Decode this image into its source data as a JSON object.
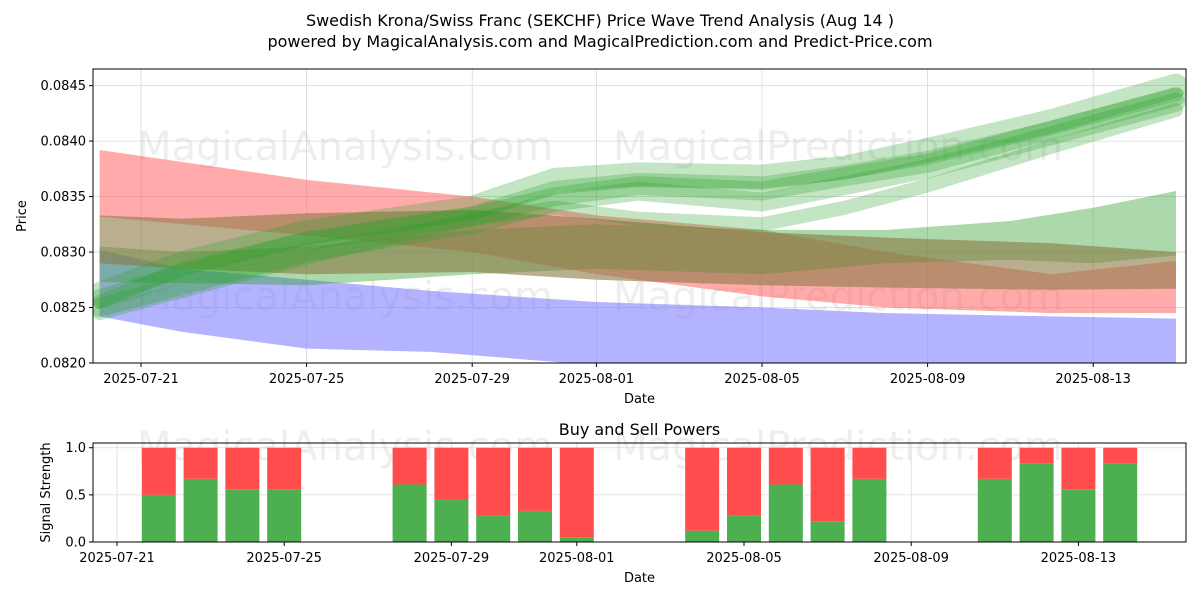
{
  "title_line1": "Swedish Krona/Swiss Franc (SEKCHF) Price Wave Trend Analysis (Aug 14 )",
  "title_line2": "powered by MagicalAnalysis.com and MagicalPrediction.com and Predict-Price.com",
  "watermarks": [
    "MagicalAnalysis.com",
    "MagicalPrediction.com"
  ],
  "colors": {
    "green": "#2ca02c",
    "red": "#ff6666",
    "blue": "#8080ff",
    "olive": "#8a7a44",
    "teal": "#3a7a8a",
    "bar_green": "#4caf50",
    "bar_red": "#ff4d4d"
  },
  "chart_data": [
    {
      "type": "area",
      "title": "",
      "xlabel": "Date",
      "ylabel": "Price",
      "x_ticks": [
        "2025-07-21",
        "2025-07-25",
        "2025-07-29",
        "2025-08-01",
        "2025-08-05",
        "2025-08-09",
        "2025-08-13"
      ],
      "y_ticks": [
        "0.0820",
        "0.0825",
        "0.0830",
        "0.0835",
        "0.0840",
        "0.0845"
      ],
      "xlim": [
        "2025-07-20",
        "2025-08-15"
      ],
      "ylim": [
        0.082,
        0.08465
      ],
      "grid": true,
      "bands": [
        {
          "name": "red",
          "color": "red",
          "x": [
            "2025-07-20",
            "2025-07-25",
            "2025-07-29",
            "2025-08-01",
            "2025-08-05",
            "2025-08-08",
            "2025-08-12",
            "2025-08-15"
          ],
          "upper": [
            0.08392,
            0.08365,
            0.0835,
            0.08333,
            0.0832,
            0.083,
            0.0828,
            0.08292
          ],
          "lower": [
            0.08332,
            0.08315,
            0.083,
            0.0828,
            0.0826,
            0.0825,
            0.08245,
            0.08245
          ]
        },
        {
          "name": "blue",
          "color": "blue",
          "x": [
            "2025-07-20",
            "2025-07-22",
            "2025-07-25",
            "2025-07-28",
            "2025-08-01",
            "2025-08-05",
            "2025-08-08",
            "2025-08-12",
            "2025-08-15"
          ],
          "upper": [
            0.08302,
            0.08285,
            0.08275,
            0.08265,
            0.08255,
            0.0825,
            0.08245,
            0.08242,
            0.0824
          ],
          "lower": [
            0.08242,
            0.08228,
            0.08213,
            0.0821,
            0.08198,
            0.08185,
            0.0818,
            0.08178,
            0.08178
          ]
        },
        {
          "name": "green-low",
          "color": "green",
          "x": [
            "2025-07-20",
            "2025-07-22",
            "2025-07-25",
            "2025-07-29",
            "2025-08-01",
            "2025-08-05",
            "2025-08-08",
            "2025-08-11",
            "2025-08-13",
            "2025-08-15"
          ],
          "upper": [
            0.08305,
            0.083,
            0.08305,
            0.0832,
            0.08325,
            0.0832,
            0.0832,
            0.08328,
            0.0834,
            0.08355
          ],
          "lower": [
            0.08273,
            0.08272,
            0.0827,
            0.0828,
            0.08285,
            0.0828,
            0.0829,
            0.08293,
            0.0829,
            0.08297
          ]
        },
        {
          "name": "olive",
          "color": "olive",
          "x": [
            "2025-07-20",
            "2025-07-22",
            "2025-07-25",
            "2025-07-29",
            "2025-08-01",
            "2025-08-05",
            "2025-08-08",
            "2025-08-12",
            "2025-08-15"
          ],
          "upper": [
            0.08333,
            0.0833,
            0.08335,
            0.08338,
            0.0833,
            0.08318,
            0.08313,
            0.08308,
            0.083
          ],
          "lower": [
            0.0829,
            0.08285,
            0.0828,
            0.08282,
            0.08275,
            0.0827,
            0.08268,
            0.08266,
            0.08267
          ]
        }
      ],
      "wave_lines": [
        {
          "color": "green",
          "x": [
            "2025-07-20",
            "2025-07-22",
            "2025-07-25",
            "2025-07-29",
            "2025-07-31",
            "2025-08-02",
            "2025-08-05",
            "2025-08-07",
            "2025-08-09",
            "2025-08-12",
            "2025-08-15"
          ],
          "y": [
            0.08255,
            0.08285,
            0.08312,
            0.08335,
            0.08358,
            0.08365,
            0.08362,
            0.08372,
            0.08385,
            0.08412,
            0.08442
          ]
        },
        {
          "color": "green",
          "x": [
            "2025-07-20",
            "2025-07-22",
            "2025-07-25",
            "2025-07-29",
            "2025-07-31",
            "2025-08-02",
            "2025-08-05",
            "2025-08-07",
            "2025-08-09",
            "2025-08-12",
            "2025-08-15"
          ],
          "y": [
            0.0825,
            0.0827,
            0.083,
            0.08325,
            0.08345,
            0.08355,
            0.08345,
            0.0836,
            0.08375,
            0.08405,
            0.08435
          ]
        },
        {
          "color": "green",
          "x": [
            "2025-07-20",
            "2025-07-22",
            "2025-07-25",
            "2025-07-29",
            "2025-07-31",
            "2025-08-02",
            "2025-08-05",
            "2025-08-07",
            "2025-08-09",
            "2025-08-12",
            "2025-08-15"
          ],
          "y": [
            0.08262,
            0.0829,
            0.08318,
            0.0834,
            0.08365,
            0.0837,
            0.08368,
            0.08376,
            0.08392,
            0.08418,
            0.0845
          ]
        },
        {
          "color": "green",
          "x": [
            "2025-07-20",
            "2025-07-22",
            "2025-07-25",
            "2025-07-29",
            "2025-07-31",
            "2025-08-02",
            "2025-08-05",
            "2025-08-07",
            "2025-08-09",
            "2025-08-12",
            "2025-08-15"
          ],
          "y": [
            0.08245,
            0.08265,
            0.08295,
            0.0833,
            0.0834,
            0.0833,
            0.08325,
            0.0834,
            0.0836,
            0.08395,
            0.08428
          ]
        },
        {
          "color": "green",
          "x": [
            "2025-07-20",
            "2025-07-22",
            "2025-07-25",
            "2025-07-29",
            "2025-07-31",
            "2025-08-02",
            "2025-08-05",
            "2025-08-07",
            "2025-08-09",
            "2025-08-12",
            "2025-08-15"
          ],
          "y": [
            0.08258,
            0.0828,
            0.0831,
            0.08332,
            0.0835,
            0.0836,
            0.08355,
            0.08368,
            0.0838,
            0.0841,
            0.0844
          ]
        }
      ]
    },
    {
      "type": "bar",
      "title": "Buy and Sell Powers",
      "xlabel": "Date",
      "ylabel": "Signal Strength",
      "x_ticks": [
        "2025-07-21",
        "2025-07-25",
        "2025-07-29",
        "2025-08-01",
        "2025-08-05",
        "2025-08-09",
        "2025-08-13"
      ],
      "y_ticks": [
        "0.0",
        "0.5",
        "1.0"
      ],
      "ylim": [
        0,
        1.05
      ],
      "categories": [
        "2025-07-22",
        "2025-07-23",
        "2025-07-24",
        "2025-07-25",
        "2025-07-28",
        "2025-07-29",
        "2025-07-30",
        "2025-07-31",
        "2025-08-01",
        "2025-08-04",
        "2025-08-05",
        "2025-08-06",
        "2025-08-07",
        "2025-08-08",
        "2025-08-11",
        "2025-08-12",
        "2025-08-13",
        "2025-08-14"
      ],
      "series": [
        {
          "name": "",
          "color": "bar_green",
          "values": [
            0.5,
            0.67,
            0.56,
            0.56,
            0.61,
            0.45,
            0.28,
            0.33,
            0.05,
            0.12,
            0.28,
            0.61,
            0.22,
            0.67,
            0.67,
            0.83,
            0.56,
            0.83
          ]
        },
        {
          "name": "",
          "color": "bar_red",
          "values": [
            0.5,
            0.33,
            0.44,
            0.44,
            0.39,
            0.55,
            0.72,
            0.67,
            0.95,
            0.88,
            0.72,
            0.39,
            0.78,
            0.33,
            0.33,
            0.17,
            0.44,
            0.17
          ]
        }
      ]
    }
  ]
}
